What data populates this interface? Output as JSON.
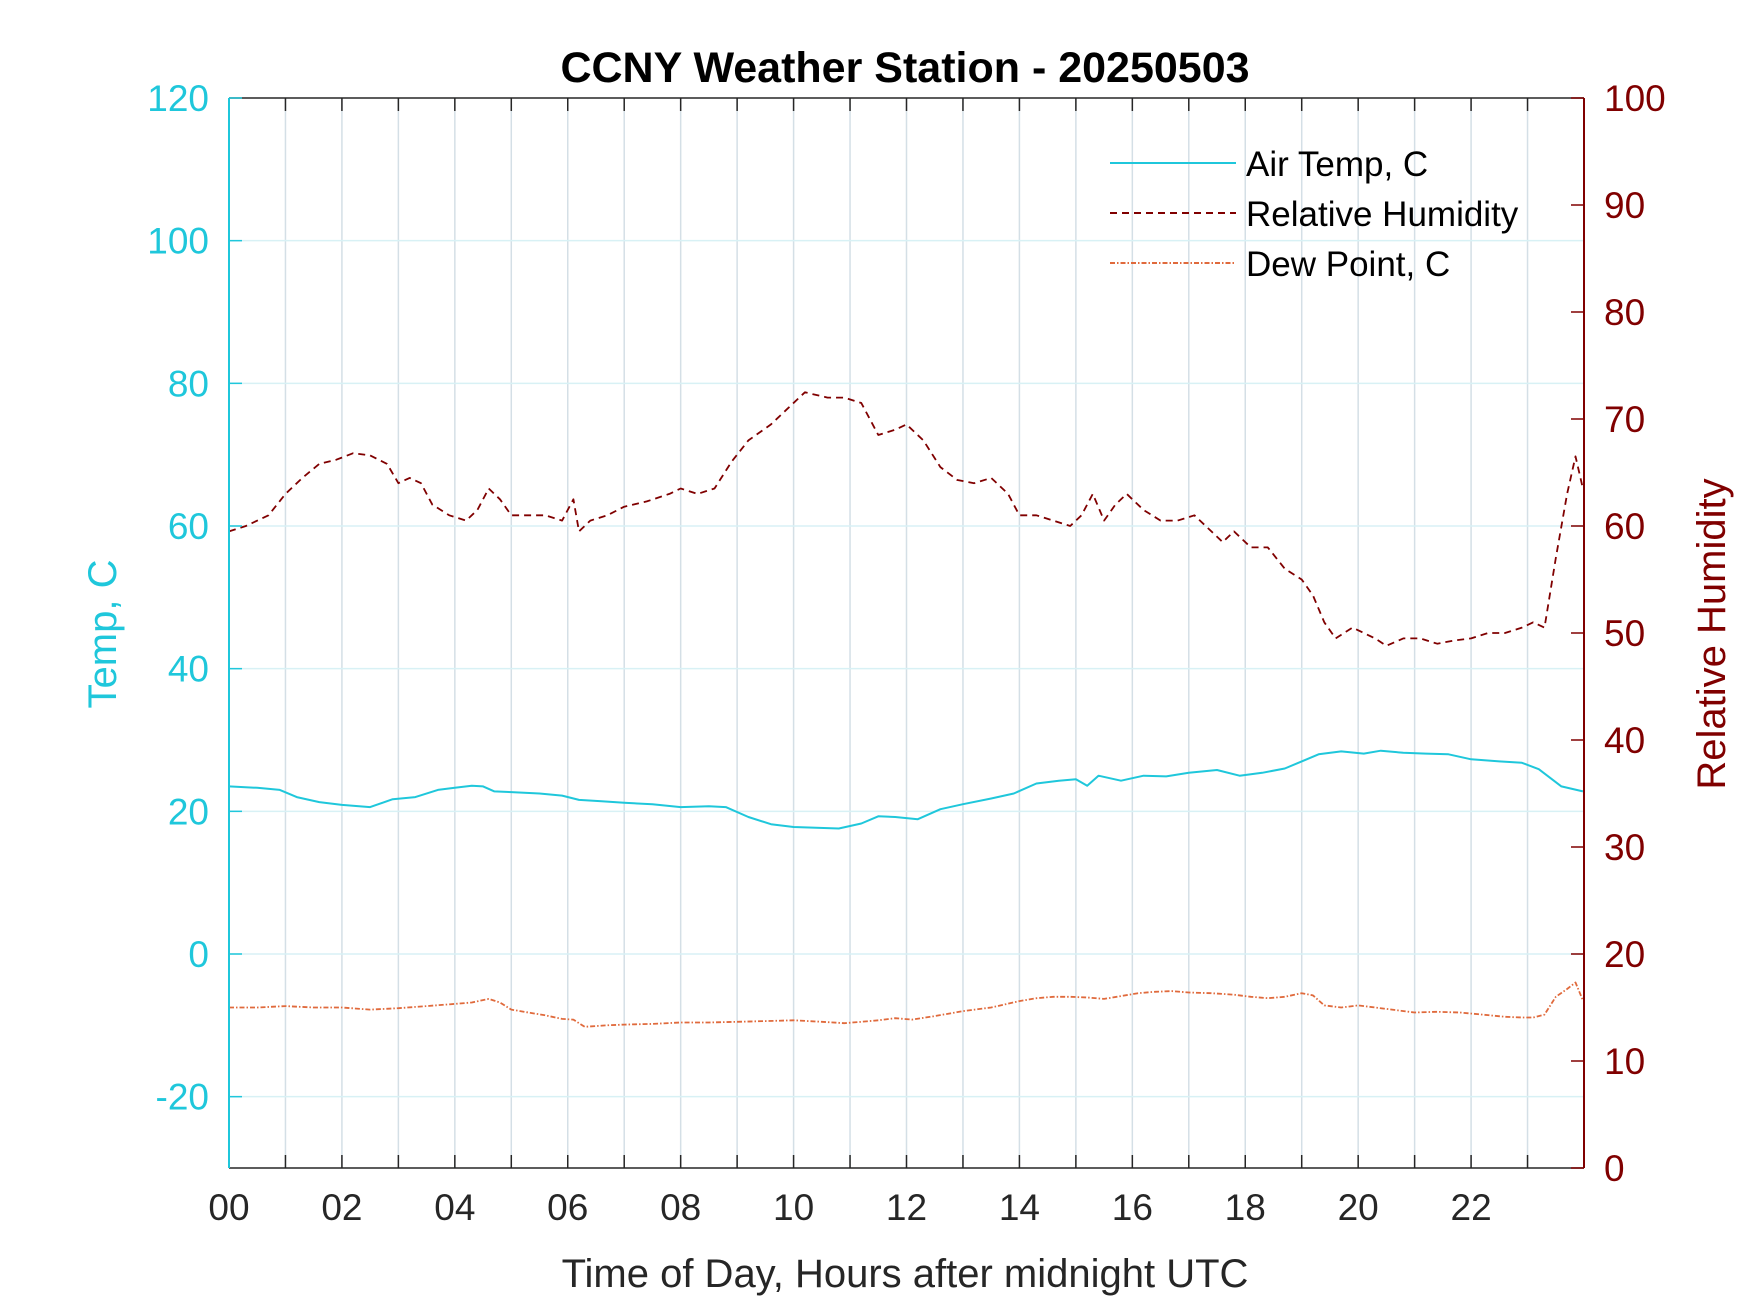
{
  "chart_data": {
    "type": "line",
    "title": "CCNY Weather Station - 20250503",
    "xlabel": "Time of Day, Hours after midnight UTC",
    "ylabel_left": "Temp, C",
    "ylabel_right": "Relative Humidity",
    "xlim": [
      0,
      24
    ],
    "ylim_left": [
      -30,
      120
    ],
    "ylim_right": [
      0,
      100
    ],
    "x_ticks": [
      0,
      2,
      4,
      6,
      8,
      10,
      12,
      14,
      16,
      18,
      20,
      22
    ],
    "x_tick_labels": [
      "00",
      "02",
      "04",
      "06",
      "08",
      "10",
      "12",
      "14",
      "16",
      "18",
      "20",
      "22"
    ],
    "y_left_ticks": [
      -20,
      0,
      20,
      40,
      60,
      80,
      100,
      120
    ],
    "y_left_tick_labels": [
      "-20",
      "0",
      "20",
      "40",
      "60",
      "80",
      "100",
      "120"
    ],
    "y_right_ticks": [
      0,
      10,
      20,
      30,
      40,
      50,
      60,
      70,
      80,
      90,
      100
    ],
    "y_right_tick_labels": [
      "0",
      "10",
      "20",
      "30",
      "40",
      "50",
      "60",
      "70",
      "80",
      "90",
      "100"
    ],
    "grid": true,
    "legend_position": "top-right",
    "colors": {
      "left_axis": "#1fc7db",
      "right_axis": "#800000",
      "dew_point": "#e06a3c",
      "grid": "#d4dfe6",
      "text": "#262626"
    },
    "series": [
      {
        "name": "Air Temp, C",
        "axis": "left",
        "style": "solid",
        "color": "#1fc7db",
        "x": [
          0,
          0.5,
          0.9,
          1.2,
          1.6,
          2.0,
          2.5,
          2.9,
          3.3,
          3.7,
          4.0,
          4.3,
          4.5,
          4.7,
          5.0,
          5.5,
          5.9,
          6.2,
          6.6,
          7.0,
          7.5,
          8.0,
          8.5,
          8.8,
          9.2,
          9.6,
          10.0,
          10.4,
          10.8,
          11.2,
          11.5,
          11.8,
          12.2,
          12.6,
          13.0,
          13.5,
          13.9,
          14.3,
          14.7,
          15.0,
          15.2,
          15.4,
          15.8,
          16.2,
          16.6,
          17.0,
          17.5,
          17.9,
          18.3,
          18.7,
          19.0,
          19.3,
          19.7,
          20.1,
          20.4,
          20.8,
          21.2,
          21.6,
          22.0,
          22.5,
          22.9,
          23.2,
          23.6,
          23.98
        ],
        "y": [
          23.5,
          23.3,
          23.0,
          22.0,
          21.3,
          20.9,
          20.6,
          21.7,
          22.0,
          23.0,
          23.3,
          23.6,
          23.5,
          22.8,
          22.7,
          22.5,
          22.2,
          21.6,
          21.4,
          21.2,
          21.0,
          20.6,
          20.7,
          20.6,
          19.2,
          18.2,
          17.8,
          17.7,
          17.6,
          18.3,
          19.3,
          19.2,
          18.9,
          20.3,
          21.0,
          21.8,
          22.5,
          23.9,
          24.3,
          24.5,
          23.6,
          25.0,
          24.3,
          25.0,
          24.9,
          25.4,
          25.8,
          25.0,
          25.4,
          26.0,
          27.0,
          28.0,
          28.4,
          28.1,
          28.5,
          28.2,
          28.1,
          28.0,
          27.3,
          27.0,
          26.8,
          25.9,
          23.5,
          22.8
        ]
      },
      {
        "name": "Relative Humidity",
        "axis": "right",
        "style": "dashed",
        "color": "#800000",
        "x": [
          0,
          0.3,
          0.7,
          1.0,
          1.3,
          1.6,
          1.9,
          2.2,
          2.5,
          2.8,
          3.0,
          3.2,
          3.4,
          3.6,
          3.9,
          4.2,
          4.4,
          4.6,
          4.8,
          5.0,
          5.3,
          5.6,
          5.9,
          6.1,
          6.2,
          6.4,
          6.7,
          7.0,
          7.4,
          7.8,
          8.0,
          8.3,
          8.6,
          8.9,
          9.2,
          9.6,
          9.9,
          10.2,
          10.6,
          10.9,
          11.2,
          11.5,
          11.8,
          12.0,
          12.3,
          12.6,
          12.9,
          13.2,
          13.5,
          13.8,
          14.0,
          14.3,
          14.6,
          14.9,
          15.1,
          15.3,
          15.5,
          15.7,
          15.9,
          16.2,
          16.5,
          16.8,
          17.1,
          17.4,
          17.6,
          17.8,
          18.1,
          18.4,
          18.7,
          19.0,
          19.2,
          19.4,
          19.6,
          19.9,
          20.1,
          20.3,
          20.5,
          20.8,
          21.1,
          21.4,
          21.7,
          22.0,
          22.3,
          22.6,
          22.9,
          23.1,
          23.3,
          23.5,
          23.7,
          23.85,
          23.98
        ],
        "y": [
          59.5,
          60.0,
          61.0,
          63.0,
          64.5,
          65.8,
          66.2,
          66.8,
          66.6,
          65.8,
          64.0,
          64.5,
          64.0,
          62.0,
          61.0,
          60.5,
          61.5,
          63.5,
          62.5,
          61.0,
          61.0,
          61.0,
          60.5,
          62.5,
          59.5,
          60.5,
          61.0,
          61.8,
          62.3,
          63.0,
          63.5,
          63.0,
          63.5,
          66.0,
          68.0,
          69.5,
          71.0,
          72.5,
          72.0,
          72.0,
          71.5,
          68.5,
          69.0,
          69.5,
          68.0,
          65.5,
          64.3,
          64.0,
          64.5,
          63.0,
          61.0,
          61.0,
          60.5,
          60.0,
          61.0,
          63.0,
          60.5,
          62.0,
          63.0,
          61.5,
          60.5,
          60.5,
          61.0,
          59.5,
          58.5,
          59.5,
          58.0,
          58.0,
          56.0,
          55.0,
          53.5,
          51.0,
          49.5,
          50.5,
          50.0,
          49.5,
          48.8,
          49.5,
          49.5,
          49.0,
          49.3,
          49.5,
          50.0,
          50.0,
          50.5,
          51.0,
          50.5,
          57.0,
          63.0,
          66.5,
          63.5
        ]
      },
      {
        "name": "Dew Point, C",
        "axis": "left",
        "style": "dash-dot",
        "color": "#e06a3c",
        "x": [
          0,
          0.5,
          1.0,
          1.5,
          2.0,
          2.5,
          3.0,
          3.5,
          4.0,
          4.3,
          4.6,
          4.8,
          5.0,
          5.3,
          5.6,
          5.9,
          6.1,
          6.3,
          6.7,
          7.0,
          7.5,
          8.0,
          8.5,
          9.0,
          9.5,
          10.0,
          10.5,
          10.9,
          11.2,
          11.5,
          11.8,
          12.1,
          12.5,
          13.0,
          13.5,
          14.0,
          14.3,
          14.6,
          14.9,
          15.2,
          15.5,
          15.8,
          16.1,
          16.4,
          16.7,
          17.0,
          17.4,
          17.8,
          18.1,
          18.4,
          18.7,
          19.0,
          19.2,
          19.4,
          19.7,
          20.0,
          20.3,
          20.6,
          21.0,
          21.4,
          21.8,
          22.2,
          22.6,
          22.9,
          23.1,
          23.3,
          23.5,
          23.7,
          23.85,
          23.98
        ],
        "y": [
          -7.5,
          -7.5,
          -7.3,
          -7.5,
          -7.5,
          -7.8,
          -7.6,
          -7.3,
          -7.0,
          -6.8,
          -6.3,
          -6.8,
          -7.8,
          -8.2,
          -8.6,
          -9.1,
          -9.2,
          -10.2,
          -10.0,
          -9.9,
          -9.8,
          -9.6,
          -9.6,
          -9.5,
          -9.4,
          -9.3,
          -9.5,
          -9.7,
          -9.5,
          -9.3,
          -9.0,
          -9.2,
          -8.7,
          -8.0,
          -7.5,
          -6.6,
          -6.2,
          -6.0,
          -6.0,
          -6.1,
          -6.3,
          -5.9,
          -5.5,
          -5.3,
          -5.2,
          -5.4,
          -5.5,
          -5.7,
          -6.0,
          -6.2,
          -6.0,
          -5.5,
          -5.8,
          -7.2,
          -7.5,
          -7.2,
          -7.5,
          -7.8,
          -8.2,
          -8.1,
          -8.2,
          -8.5,
          -8.8,
          -8.9,
          -8.9,
          -8.5,
          -6.0,
          -4.9,
          -4.0,
          -6.5
        ]
      }
    ]
  }
}
